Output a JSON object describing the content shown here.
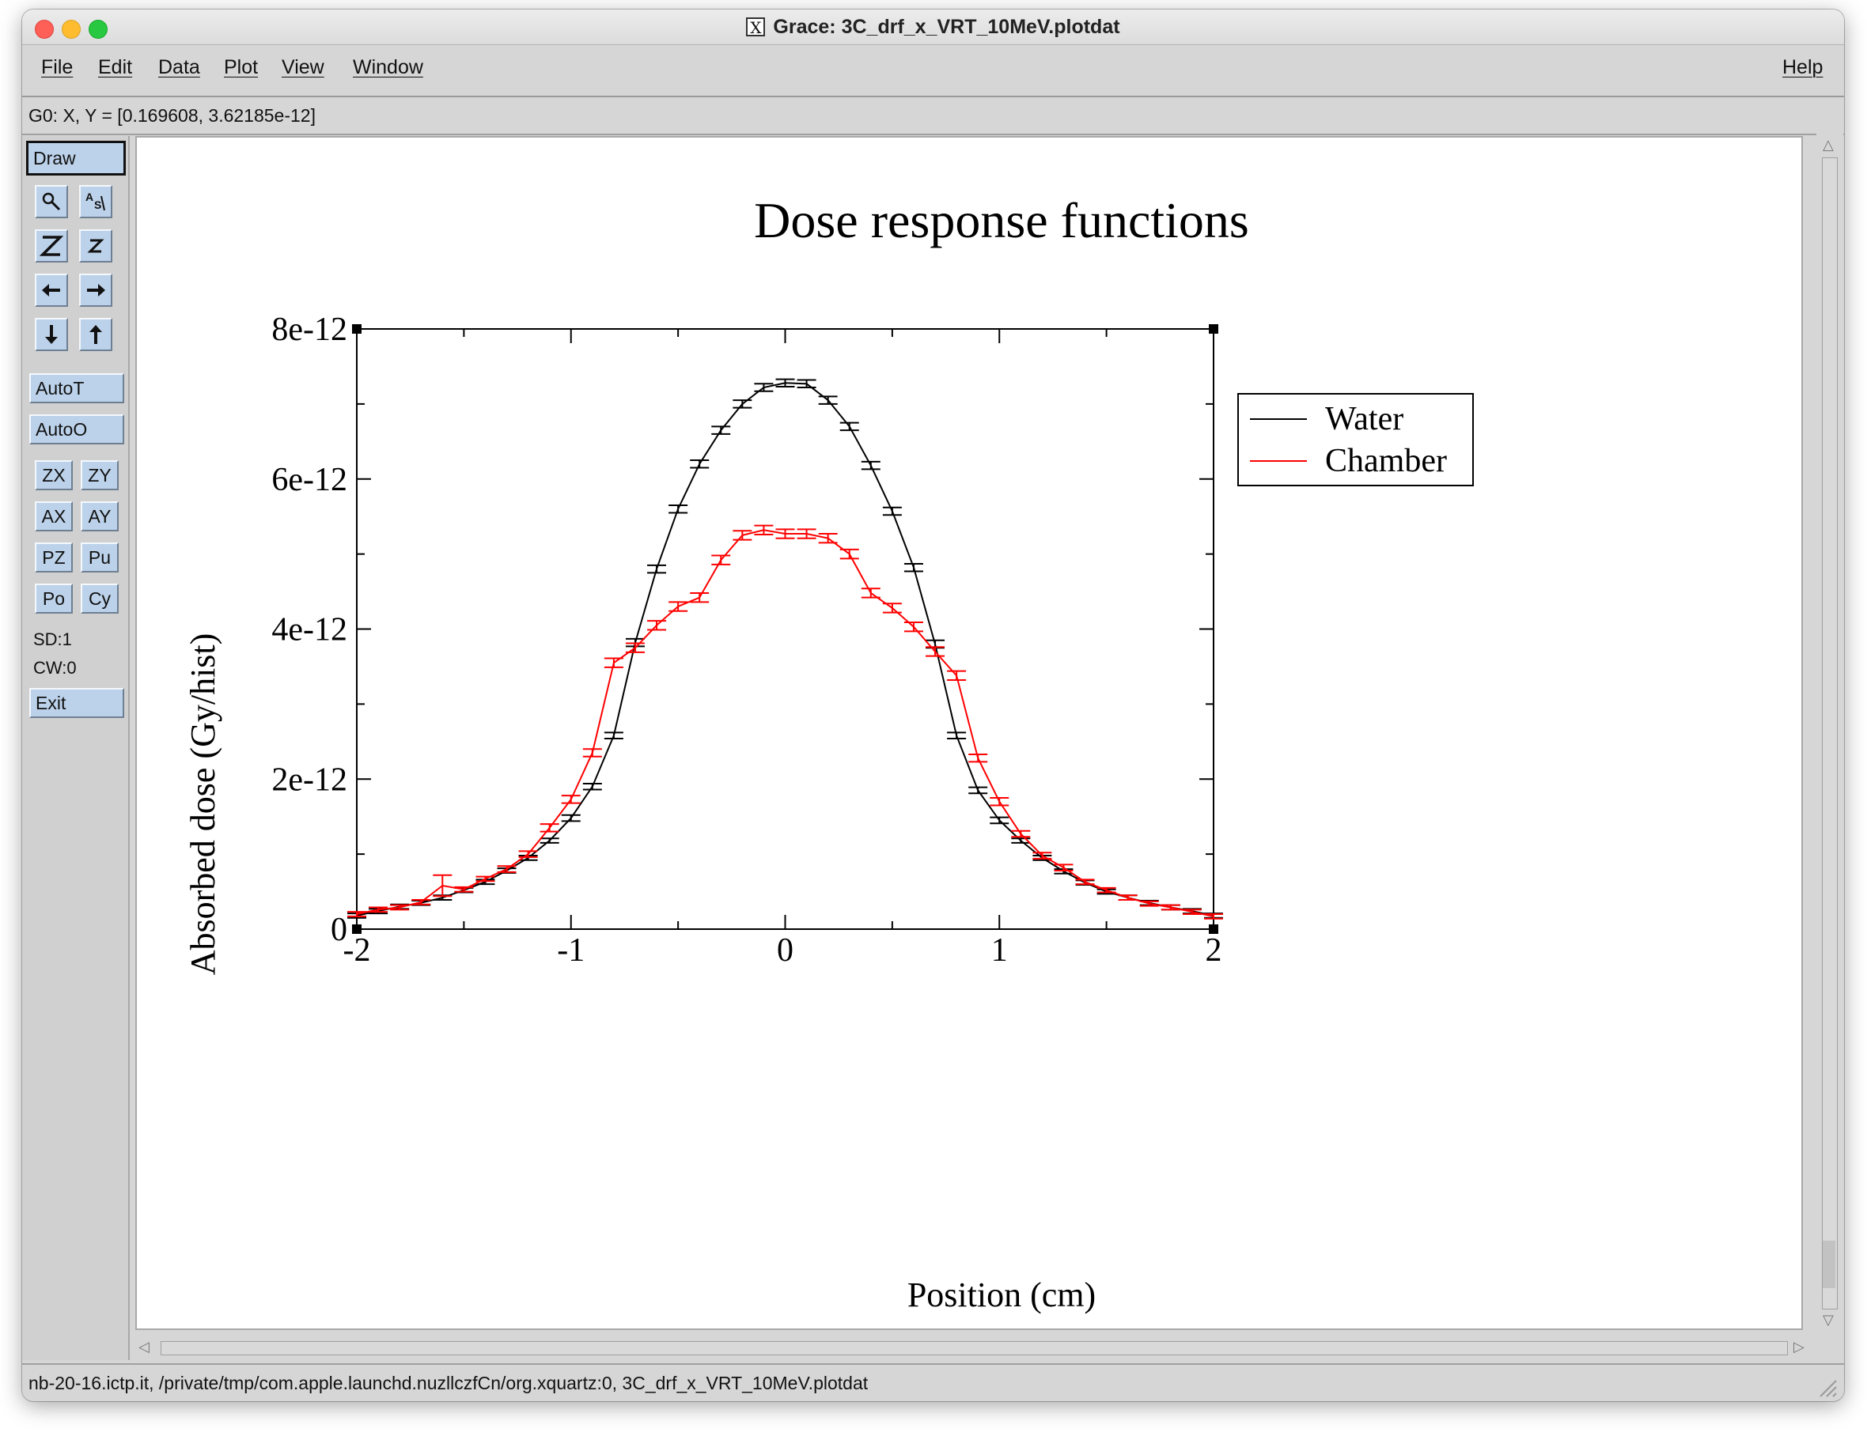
{
  "window": {
    "title": "Grace: 3C_drf_x_VRT_10MeV.plotdat"
  },
  "menu": {
    "file": "File",
    "edit": "Edit",
    "data": "Data",
    "plot": "Plot",
    "view": "View",
    "window": "Window",
    "help": "Help"
  },
  "locator": "G0: X, Y = [0.169608, 3.62185e-12]",
  "toolbar": {
    "draw": "Draw",
    "icons": [
      "zoom-icon",
      "autoscale-icon",
      "zoom-in-icon",
      "zoom-out-icon",
      "left-arrow-icon",
      "right-arrow-icon",
      "down-arrow-icon",
      "up-arrow-icon"
    ],
    "autot": "AutoT",
    "autoo": "AutoO",
    "zx": "ZX",
    "zy": "ZY",
    "ax": "AX",
    "ay": "AY",
    "pz": "PZ",
    "pu": "Pu",
    "po": "Po",
    "cy": "Cy",
    "sd": "SD:1",
    "cw": "CW:0",
    "exit": "Exit"
  },
  "status": "nb-20-16.ictp.it, /private/tmp/com.apple.launchd.nuzllczfCn/org.xquartz:0, 3C_drf_x_VRT_10MeV.plotdat",
  "chart_data": {
    "type": "line",
    "title": "Dose response functions",
    "xlabel": "Position (cm)",
    "ylabel": "Absorbed dose (Gy/hist)",
    "xlim": [
      -2,
      2
    ],
    "ylim": [
      0,
      8e-12
    ],
    "xticks": [
      "-2",
      "-1",
      "0",
      "1",
      "2"
    ],
    "yticks": [
      "0",
      "2e-12",
      "4e-12",
      "6e-12",
      "8e-12"
    ],
    "legend": "top-right",
    "x": [
      -2.0,
      -1.9,
      -1.8,
      -1.7,
      -1.6,
      -1.5,
      -1.4,
      -1.3,
      -1.2,
      -1.1,
      -1.0,
      -0.9,
      -0.8,
      -0.7,
      -0.6,
      -0.5,
      -0.4,
      -0.3,
      -0.2,
      -0.1,
      0.0,
      0.1,
      0.2,
      0.3,
      0.4,
      0.5,
      0.6,
      0.7,
      0.8,
      0.9,
      1.0,
      1.1,
      1.2,
      1.3,
      1.4,
      1.5,
      1.6,
      1.7,
      1.8,
      1.9,
      2.0
    ],
    "series": [
      {
        "name": "Water",
        "color": "#000000",
        "values": [
          0.18,
          0.24,
          0.3,
          0.35,
          0.42,
          0.52,
          0.63,
          0.78,
          0.95,
          1.18,
          1.48,
          1.9,
          2.58,
          3.82,
          4.8,
          5.6,
          6.2,
          6.65,
          7.0,
          7.22,
          7.28,
          7.27,
          7.05,
          6.7,
          6.18,
          5.57,
          4.82,
          3.8,
          2.58,
          1.85,
          1.45,
          1.18,
          0.95,
          0.77,
          0.62,
          0.5,
          0.42,
          0.35,
          0.29,
          0.24,
          0.18
        ],
        "errors": [
          0.03,
          0.03,
          0.03,
          0.03,
          0.03,
          0.03,
          0.03,
          0.03,
          0.03,
          0.03,
          0.04,
          0.04,
          0.04,
          0.05,
          0.05,
          0.05,
          0.05,
          0.05,
          0.05,
          0.05,
          0.05,
          0.05,
          0.05,
          0.05,
          0.05,
          0.05,
          0.05,
          0.05,
          0.04,
          0.04,
          0.04,
          0.03,
          0.03,
          0.03,
          0.03,
          0.03,
          0.03,
          0.03,
          0.03,
          0.03,
          0.03
        ]
      },
      {
        "name": "Chamber",
        "color": "#ff0000",
        "values": [
          0.2,
          0.26,
          0.29,
          0.36,
          0.58,
          0.53,
          0.67,
          0.8,
          1.0,
          1.35,
          1.73,
          2.35,
          3.55,
          3.75,
          4.05,
          4.3,
          4.42,
          4.92,
          5.25,
          5.32,
          5.27,
          5.27,
          5.21,
          5.0,
          4.48,
          4.28,
          4.03,
          3.7,
          3.38,
          2.28,
          1.7,
          1.27,
          0.98,
          0.82,
          0.63,
          0.52,
          0.42,
          0.34,
          0.29,
          0.23,
          0.17
        ],
        "errors": [
          0.03,
          0.03,
          0.03,
          0.03,
          0.14,
          0.03,
          0.03,
          0.04,
          0.04,
          0.05,
          0.05,
          0.05,
          0.06,
          0.06,
          0.06,
          0.06,
          0.06,
          0.06,
          0.06,
          0.06,
          0.06,
          0.06,
          0.06,
          0.06,
          0.06,
          0.06,
          0.06,
          0.06,
          0.06,
          0.05,
          0.05,
          0.04,
          0.04,
          0.04,
          0.03,
          0.03,
          0.03,
          0.03,
          0.03,
          0.03,
          0.03
        ]
      }
    ]
  }
}
